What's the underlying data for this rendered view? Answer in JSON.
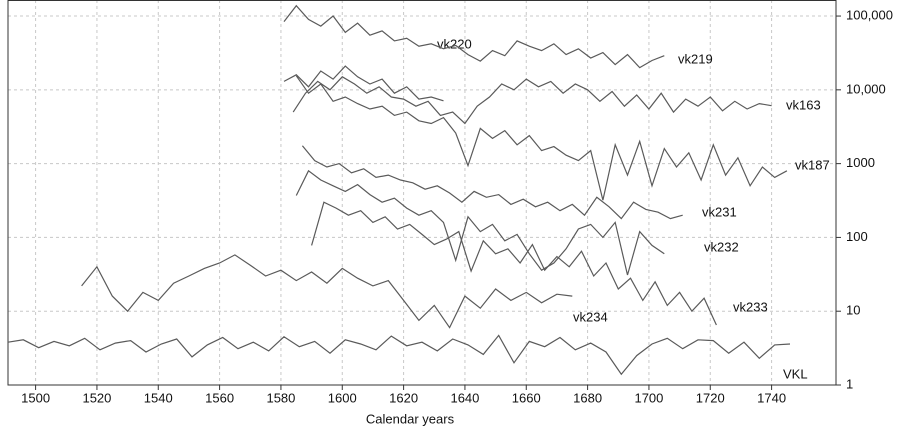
{
  "chart_data": {
    "type": "line",
    "x_label": "Calendar years",
    "y_log": true,
    "grid": true,
    "xlim": [
      1491,
      1761
    ],
    "ylim": [
      1,
      165000
    ],
    "xticks": [
      1500,
      1520,
      1540,
      1560,
      1580,
      1600,
      1620,
      1640,
      1660,
      1680,
      1700,
      1720,
      1740
    ],
    "yticks": [
      1,
      10,
      100,
      1000,
      {
        "value": 10000,
        "label": "10,000"
      },
      {
        "value": 100000,
        "label": "100,000"
      }
    ],
    "series": [
      {
        "name": "vk220",
        "color": "#5a5a5a",
        "x": [
          1581,
          1585,
          1589,
          1593,
          1597,
          1601,
          1605,
          1609,
          1613,
          1617,
          1621,
          1625,
          1629,
          1633
        ],
        "values": [
          13000,
          16000,
          11000,
          18000,
          14000,
          21000,
          15000,
          12000,
          14000,
          9000,
          11000,
          7500,
          8000,
          7100
        ]
      },
      {
        "name": "vk219",
        "color": "#5a5a5a",
        "x": [
          1581,
          1585,
          1589,
          1593,
          1597,
          1601,
          1605,
          1609,
          1613,
          1617,
          1621,
          1625,
          1629,
          1633,
          1637,
          1641,
          1645,
          1649,
          1653,
          1657,
          1661,
          1665,
          1669,
          1673,
          1677,
          1681,
          1685,
          1689,
          1693,
          1697,
          1701,
          1705
        ],
        "values": [
          84000,
          138000,
          90000,
          73000,
          100000,
          60000,
          80000,
          55000,
          63000,
          46000,
          50000,
          39000,
          42000,
          36000,
          40000,
          30000,
          24500,
          34000,
          29000,
          46000,
          39000,
          34000,
          42000,
          30000,
          36000,
          27000,
          32000,
          22000,
          30000,
          20000,
          25000,
          29000
        ]
      },
      {
        "name": "vk163",
        "color": "#5a5a5a",
        "x": [
          1584,
          1588,
          1592,
          1596,
          1600,
          1604,
          1608,
          1612,
          1616,
          1620,
          1624,
          1628,
          1632,
          1636,
          1640,
          1644,
          1648,
          1652,
          1656,
          1660,
          1664,
          1668,
          1672,
          1676,
          1680,
          1684,
          1688,
          1692,
          1696,
          1700,
          1704,
          1708,
          1712,
          1716,
          1720,
          1724,
          1728,
          1732,
          1736,
          1740
        ],
        "values": [
          5000,
          9000,
          13000,
          10000,
          15000,
          12000,
          9000,
          11000,
          8000,
          7500,
          6000,
          7000,
          4500,
          5000,
          3500,
          6000,
          8000,
          12000,
          10000,
          14000,
          11000,
          13000,
          9000,
          12000,
          10000,
          7000,
          9500,
          6000,
          8500,
          5500,
          9000,
          5000,
          7500,
          6000,
          8000,
          5200,
          7000,
          5500,
          6500,
          6100
        ]
      },
      {
        "name": "vk187",
        "color": "#5a5a5a",
        "x": [
          1585,
          1589,
          1593,
          1597,
          1601,
          1605,
          1609,
          1613,
          1617,
          1621,
          1625,
          1629,
          1633,
          1637,
          1641,
          1645,
          1649,
          1653,
          1657,
          1661,
          1665,
          1669,
          1673,
          1677,
          1681,
          1685,
          1689,
          1693,
          1697,
          1701,
          1705,
          1709,
          1713,
          1717,
          1721,
          1725,
          1729,
          1733,
          1737,
          1741,
          1745
        ],
        "values": [
          15500,
          9000,
          12000,
          7000,
          8000,
          6500,
          5500,
          6000,
          4500,
          5000,
          3800,
          3500,
          4200,
          2600,
          940,
          3000,
          2200,
          2800,
          1800,
          2400,
          1500,
          1700,
          1300,
          1100,
          1500,
          320,
          1800,
          700,
          2000,
          500,
          1600,
          900,
          1400,
          600,
          1800,
          700,
          1200,
          500,
          900,
          650,
          800
        ]
      },
      {
        "name": "vk231",
        "color": "#5a5a5a",
        "x": [
          1587,
          1591,
          1595,
          1599,
          1603,
          1607,
          1611,
          1615,
          1619,
          1623,
          1627,
          1631,
          1635,
          1639,
          1643,
          1647,
          1651,
          1655,
          1659,
          1663,
          1667,
          1671,
          1675,
          1679,
          1683,
          1687,
          1691,
          1695,
          1699,
          1703,
          1707,
          1711
        ],
        "values": [
          1750,
          1100,
          900,
          1000,
          750,
          850,
          650,
          700,
          600,
          550,
          450,
          500,
          400,
          300,
          420,
          350,
          380,
          280,
          330,
          260,
          300,
          230,
          280,
          200,
          350,
          260,
          180,
          300,
          240,
          220,
          180,
          200
        ]
      },
      {
        "name": "vk232",
        "color": "#5a5a5a",
        "x": [
          1585,
          1589,
          1593,
          1597,
          1601,
          1605,
          1609,
          1613,
          1617,
          1621,
          1625,
          1629,
          1633,
          1637,
          1641,
          1645,
          1649,
          1653,
          1657,
          1661,
          1665,
          1669,
          1673,
          1677,
          1681,
          1685,
          1689,
          1693,
          1697,
          1701,
          1705
        ],
        "values": [
          370,
          800,
          600,
          500,
          420,
          520,
          380,
          300,
          340,
          250,
          200,
          230,
          160,
          49,
          190,
          120,
          150,
          90,
          110,
          60,
          36,
          45,
          70,
          130,
          150,
          100,
          160,
          31,
          120,
          78,
          60
        ]
      },
      {
        "name": "vk234",
        "color": "#5a5a5a",
        "x": [
          1515,
          1520,
          1525,
          1530,
          1535,
          1540,
          1545,
          1550,
          1555,
          1560,
          1565,
          1570,
          1575,
          1580,
          1585,
          1590,
          1595,
          1600,
          1605,
          1610,
          1615,
          1620,
          1625,
          1630,
          1635,
          1640,
          1645,
          1650,
          1655,
          1660,
          1665,
          1670,
          1675
        ],
        "values": [
          22,
          40,
          16,
          10,
          18,
          14,
          24,
          30,
          38,
          45,
          58,
          42,
          30,
          36,
          26,
          34,
          24,
          38,
          28,
          22,
          26,
          14,
          7.5,
          12,
          6,
          16,
          11,
          20,
          14,
          18,
          13,
          17,
          16
        ]
      },
      {
        "name": "vk233",
        "color": "#5a5a5a",
        "x": [
          1590,
          1594,
          1598,
          1602,
          1606,
          1610,
          1614,
          1618,
          1622,
          1626,
          1630,
          1634,
          1638,
          1642,
          1646,
          1650,
          1654,
          1658,
          1662,
          1666,
          1670,
          1674,
          1678,
          1682,
          1686,
          1690,
          1694,
          1698,
          1702,
          1706,
          1710,
          1714,
          1718,
          1722
        ],
        "values": [
          78,
          300,
          250,
          200,
          230,
          160,
          190,
          130,
          150,
          110,
          80,
          95,
          120,
          35,
          90,
          60,
          70,
          45,
          80,
          36,
          55,
          40,
          65,
          30,
          45,
          20,
          28,
          14,
          25,
          12,
          18,
          10,
          15,
          6.5
        ]
      },
      {
        "name": "VKL",
        "color": "#5a5a5a",
        "x": [
          1491,
          1496,
          1501,
          1506,
          1511,
          1516,
          1521,
          1526,
          1531,
          1536,
          1541,
          1546,
          1551,
          1556,
          1561,
          1566,
          1571,
          1576,
          1581,
          1586,
          1591,
          1596,
          1601,
          1606,
          1611,
          1616,
          1621,
          1626,
          1631,
          1636,
          1641,
          1646,
          1651,
          1656,
          1661,
          1666,
          1671,
          1676,
          1681,
          1686,
          1691,
          1696,
          1701,
          1706,
          1711,
          1716,
          1721,
          1726,
          1731,
          1736,
          1741,
          1746
        ],
        "values": [
          3.8,
          4.1,
          3.2,
          3.9,
          3.4,
          4.3,
          3.0,
          3.7,
          4.0,
          2.8,
          3.6,
          4.2,
          2.4,
          3.5,
          4.4,
          3.1,
          3.8,
          2.9,
          4.5,
          3.3,
          3.9,
          2.7,
          4.1,
          3.6,
          3.0,
          4.6,
          3.4,
          3.8,
          2.9,
          4.2,
          3.5,
          2.6,
          4.7,
          2.0,
          3.9,
          3.3,
          4.4,
          3.0,
          3.7,
          2.8,
          1.4,
          2.5,
          3.6,
          4.3,
          3.1,
          4.1,
          4.0,
          2.7,
          3.8,
          2.3,
          3.5,
          3.6
        ]
      }
    ]
  }
}
